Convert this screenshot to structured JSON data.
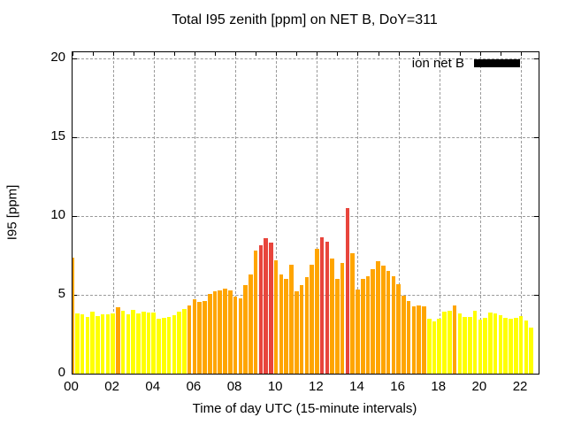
{
  "title": "Total I95 zenith [ppm] on NET B, DoY=311",
  "axes": {
    "ylabel": "I95 [ppm]",
    "xlabel": "Time of day UTC (15-minute intervals)",
    "y_tick_labels": [
      "0",
      "5",
      "10",
      "15",
      "20"
    ],
    "x_tick_labels": [
      "00",
      "02",
      "04",
      "06",
      "08",
      "10",
      "12",
      "14",
      "16",
      "18",
      "20",
      "22"
    ]
  },
  "legend": {
    "label": "ion net B",
    "swatch_color": "#000000"
  },
  "chart_data": {
    "type": "bar",
    "title": "Total I95 zenith [ppm] on NET B, DoY=311",
    "xlabel": "Time of day UTC (15-minute intervals)",
    "ylabel": "I95 [ppm]",
    "ylim": [
      0,
      20.4
    ],
    "xlim_hours": [
      0,
      22.9
    ],
    "bar_interval_minutes": 15,
    "grid": {
      "style": "dashed",
      "color": "#9a9a9a",
      "x_gridline_every_hours": 2,
      "y_gridline_every_ppm": 5,
      "x_tick_every_hours": 1
    },
    "legend": {
      "label": "ion net B",
      "swatch_color": "#000000",
      "position": "top-right-inside"
    },
    "palette": {
      "yellow": "#ffff00",
      "orange": "#ffa500",
      "red": "#e8453c"
    },
    "color_thresholds": {
      "red_min": 8.0,
      "orange_min": 4.15
    },
    "series": [
      {
        "name": "ion net B",
        "times": [
          "00:00",
          "00:15",
          "00:30",
          "00:45",
          "01:00",
          "01:15",
          "01:30",
          "01:45",
          "02:00",
          "02:15",
          "02:30",
          "02:45",
          "03:00",
          "03:15",
          "03:30",
          "03:45",
          "04:00",
          "04:15",
          "04:30",
          "04:45",
          "05:00",
          "05:15",
          "05:30",
          "05:45",
          "06:00",
          "06:15",
          "06:30",
          "06:45",
          "07:00",
          "07:15",
          "07:30",
          "07:45",
          "08:00",
          "08:15",
          "08:30",
          "08:45",
          "09:00",
          "09:15",
          "09:30",
          "09:45",
          "10:00",
          "10:15",
          "10:30",
          "10:45",
          "11:00",
          "11:15",
          "11:30",
          "11:45",
          "12:00",
          "12:15",
          "12:30",
          "12:45",
          "13:00",
          "13:15",
          "13:30",
          "13:45",
          "14:00",
          "14:15",
          "14:30",
          "14:45",
          "15:00",
          "15:15",
          "15:30",
          "15:45",
          "16:00",
          "16:15",
          "16:30",
          "16:45",
          "17:00",
          "17:15",
          "17:30",
          "17:45",
          "18:00",
          "18:15",
          "18:30",
          "18:45",
          "19:00",
          "19:15",
          "19:30",
          "19:45",
          "20:00",
          "20:15",
          "20:30",
          "20:45",
          "21:00",
          "21:15",
          "21:30",
          "21:45",
          "22:00",
          "22:15",
          "22:30"
        ],
        "values": [
          7.35,
          3.8,
          3.75,
          3.6,
          3.95,
          3.65,
          3.75,
          3.75,
          3.8,
          4.2,
          4.0,
          3.75,
          4.05,
          3.8,
          3.95,
          3.85,
          3.9,
          3.5,
          3.55,
          3.6,
          3.7,
          3.95,
          4.1,
          4.35,
          4.7,
          4.55,
          4.6,
          5.05,
          5.2,
          5.3,
          5.4,
          5.3,
          4.9,
          4.75,
          5.6,
          6.3,
          7.8,
          8.15,
          8.6,
          8.3,
          7.2,
          6.3,
          6.0,
          6.9,
          5.25,
          5.6,
          6.15,
          6.9,
          7.95,
          8.65,
          8.35,
          7.3,
          6.0,
          7.0,
          10.5,
          7.65,
          5.35,
          6.0,
          6.2,
          6.65,
          7.15,
          6.85,
          6.5,
          6.2,
          5.7,
          4.95,
          4.6,
          4.25,
          4.3,
          4.25,
          3.5,
          3.3,
          3.5,
          3.95,
          4.0,
          4.3,
          3.8,
          3.6,
          3.6,
          4.0,
          3.4,
          3.55,
          3.85,
          3.8,
          3.7,
          3.55,
          3.5,
          3.55,
          3.65,
          3.35,
          2.9
        ]
      }
    ]
  }
}
